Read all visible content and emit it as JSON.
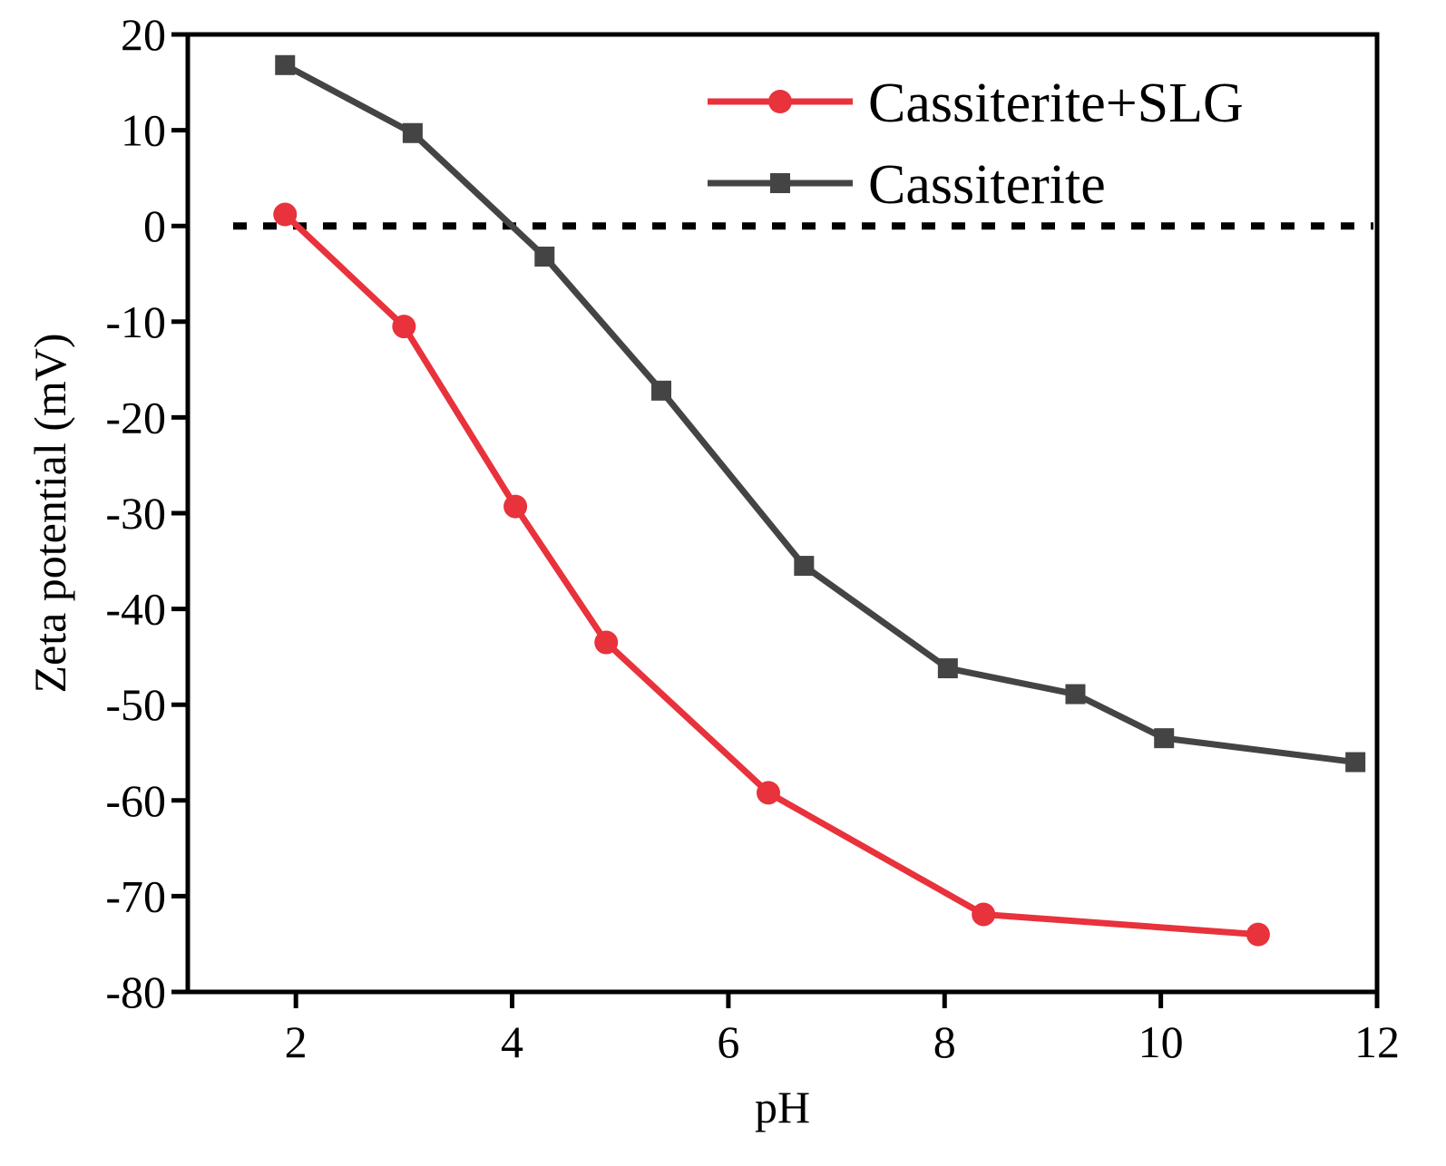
{
  "chart_data": {
    "type": "line",
    "title": "",
    "xlabel": "pH",
    "ylabel": "Zeta potential (mV)",
    "xlim": [
      1,
      12
    ],
    "ylim": [
      -80,
      20
    ],
    "xticks": [
      2,
      4,
      6,
      8,
      10,
      12
    ],
    "yticks": [
      20,
      10,
      0,
      -10,
      -20,
      -30,
      -40,
      -50,
      -60,
      -70,
      -80
    ],
    "reference_line": {
      "y": 0,
      "style": "dashed",
      "color": "#000000"
    },
    "legend_position": "top-right",
    "series": [
      {
        "name": "Cassiterite+SLG",
        "color": "#e8323c",
        "marker": "circle",
        "x": [
          1.9,
          3.0,
          4.03,
          4.87,
          6.37,
          8.36,
          10.9
        ],
        "y": [
          1.2,
          -10.5,
          -29.3,
          -43.5,
          -59.2,
          -71.9,
          -74.0
        ]
      },
      {
        "name": "Cassiterite",
        "color": "#444444",
        "marker": "square",
        "x": [
          1.9,
          3.08,
          4.3,
          5.38,
          6.7,
          8.03,
          9.21,
          10.03,
          11.8
        ],
        "y": [
          16.8,
          9.7,
          -3.2,
          -17.2,
          -35.5,
          -46.2,
          -48.9,
          -53.5,
          -56.0
        ]
      }
    ]
  }
}
